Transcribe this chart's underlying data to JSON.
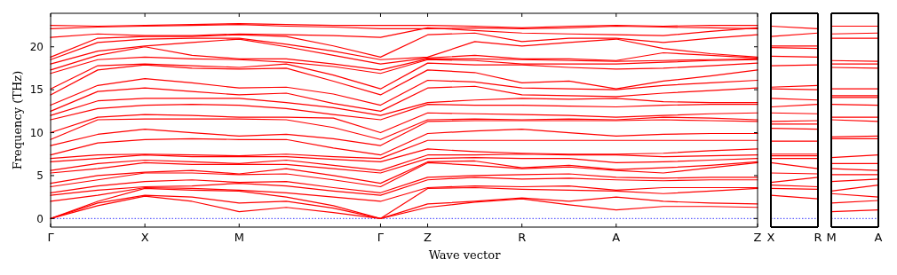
{
  "chart_data": [
    {
      "type": "line",
      "xlabel": "Wave vector",
      "ylabel": "Frequency (THz)",
      "categories": [
        "Γ",
        null,
        "X",
        null,
        "M",
        null,
        null,
        "Γ",
        "Z",
        null,
        "R",
        null,
        "A",
        null,
        null,
        "Z"
      ],
      "ylim": [
        -1,
        23.9
      ],
      "yticks": [
        0,
        5,
        10,
        15,
        20
      ],
      "line_style": "solid",
      "ref_lines": [
        {
          "axis": "y",
          "value": 0,
          "color": "#0000ff",
          "line_style": "dotted"
        }
      ],
      "series": [
        {
          "color": "#ff0000",
          "values": [
            0,
            1.5,
            2.6,
            2.0,
            0.8,
            1.3,
            0.7,
            0,
            1.3,
            1.9,
            2.3,
            1.6,
            1.0,
            1.4,
            1.4,
            1.3
          ]
        },
        {
          "color": "#ff0000",
          "values": [
            0,
            1.8,
            2.7,
            2.5,
            1.8,
            2.0,
            1.2,
            0,
            1.7,
            2.0,
            2.4,
            2.0,
            2.5,
            2.0,
            1.8,
            1.7
          ]
        },
        {
          "color": "#ff0000",
          "values": [
            0,
            2.0,
            3.5,
            3.3,
            3.2,
            2.5,
            1.5,
            0,
            3.5,
            3.6,
            3.4,
            3.3,
            3.2,
            2.9,
            3.2,
            3.5
          ]
        },
        {
          "color": "#ff0000",
          "values": [
            2.0,
            2.7,
            3.6,
            3.5,
            3.3,
            3.0,
            2.5,
            2.0,
            3.6,
            3.8,
            3.7,
            3.8,
            3.3,
            3.6,
            3.6,
            3.6
          ]
        },
        {
          "color": "#ff0000",
          "values": [
            2.7,
            3.3,
            3.7,
            3.8,
            4.1,
            3.8,
            3.2,
            2.7,
            4.5,
            4.8,
            4.6,
            4.7,
            4.5,
            4.4,
            4.5,
            4.5
          ]
        },
        {
          "color": "#ff0000",
          "values": [
            3.0,
            3.8,
            4.3,
            4.5,
            4.2,
            4.3,
            3.6,
            3.0,
            4.8,
            5.0,
            5.1,
            5.2,
            4.8,
            4.7,
            4.8,
            4.8
          ]
        },
        {
          "color": "#ff0000",
          "values": [
            3.7,
            4.5,
            5.3,
            5.3,
            5.1,
            5.2,
            4.5,
            3.7,
            6.5,
            6.2,
            5.8,
            6.0,
            5.6,
            5.3,
            5.9,
            6.5
          ]
        },
        {
          "color": "#ff0000",
          "values": [
            4.1,
            5.0,
            5.4,
            5.6,
            5.2,
            5.8,
            5.0,
            4.1,
            6.6,
            6.7,
            5.9,
            6.2,
            5.7,
            5.9,
            6.2,
            6.6
          ]
        },
        {
          "color": "#ff0000",
          "values": [
            5.3,
            5.8,
            6.5,
            6.3,
            6.3,
            6.3,
            5.8,
            5.3,
            7.0,
            7.1,
            7.0,
            7.0,
            6.5,
            6.6,
            6.8,
            7.0
          ]
        },
        {
          "color": "#ff0000",
          "values": [
            5.6,
            6.4,
            6.8,
            6.6,
            6.4,
            6.8,
            6.2,
            5.6,
            7.4,
            7.4,
            7.5,
            7.4,
            7.4,
            7.2,
            7.3,
            7.4
          ]
        },
        {
          "color": "#ff0000",
          "values": [
            6.6,
            7.0,
            7.4,
            7.2,
            7.2,
            7.2,
            6.9,
            6.6,
            8.1,
            7.8,
            7.6,
            7.5,
            7.5,
            7.6,
            7.9,
            8.1
          ]
        },
        {
          "color": "#ff0000",
          "values": [
            7.0,
            7.4,
            7.5,
            7.4,
            7.3,
            7.5,
            7.2,
            7.0,
            9.1,
            9.1,
            9.1,
            9.1,
            9.1,
            9.1,
            9.1,
            9.1
          ]
        },
        {
          "color": "#ff0000",
          "values": [
            7.4,
            8.8,
            9.2,
            9.3,
            9.2,
            9.2,
            8.2,
            7.4,
            9.9,
            10.2,
            10.4,
            10.0,
            9.6,
            9.8,
            9.9,
            9.9
          ]
        },
        {
          "color": "#ff0000",
          "values": [
            8.5,
            9.8,
            10.4,
            10.0,
            9.6,
            9.8,
            9.3,
            8.5,
            11.3,
            11.4,
            11.4,
            11.4,
            11.4,
            11.5,
            11.4,
            11.3
          ]
        },
        {
          "color": "#ff0000",
          "values": [
            9.2,
            11.5,
            11.6,
            11.6,
            11.6,
            11.5,
            10.6,
            9.2,
            11.5,
            11.6,
            11.5,
            11.6,
            11.5,
            11.8,
            11.7,
            11.5
          ]
        },
        {
          "color": "#ff0000",
          "values": [
            10.0,
            11.8,
            12.1,
            12.0,
            11.8,
            11.8,
            11.7,
            10.0,
            12.3,
            12.2,
            12.1,
            12.0,
            11.8,
            12.0,
            12.2,
            12.3
          ]
        },
        {
          "color": "#ff0000",
          "values": [
            11.5,
            12.8,
            13.2,
            13.3,
            13.2,
            12.8,
            12.1,
            11.5,
            13.3,
            13.2,
            13.2,
            13.1,
            13.0,
            13.2,
            13.3,
            13.3
          ]
        },
        {
          "color": "#ff0000",
          "values": [
            12.0,
            13.7,
            14.0,
            14.0,
            14.0,
            13.5,
            12.9,
            12.0,
            13.5,
            13.8,
            14.0,
            13.9,
            14.0,
            13.6,
            13.5,
            13.5
          ]
        },
        {
          "color": "#ff0000",
          "values": [
            12.5,
            14.8,
            15.2,
            14.8,
            14.4,
            14.6,
            13.4,
            12.5,
            15.2,
            15.4,
            14.4,
            14.3,
            14.2,
            14.6,
            14.9,
            15.2
          ]
        },
        {
          "color": "#ff0000",
          "values": [
            13.2,
            15.5,
            16.3,
            15.8,
            15.2,
            15.3,
            14.5,
            13.2,
            16.1,
            15.9,
            15.2,
            15.1,
            15.0,
            15.5,
            15.8,
            16.1
          ]
        },
        {
          "color": "#ff0000",
          "values": [
            14.4,
            17.3,
            17.9,
            17.5,
            17.4,
            17.5,
            16.0,
            14.4,
            17.3,
            17.0,
            15.8,
            16.0,
            15.1,
            16.0,
            16.6,
            17.3
          ]
        },
        {
          "color": "#ff0000",
          "values": [
            15.1,
            17.8,
            18.0,
            17.8,
            17.6,
            18.0,
            16.7,
            15.1,
            18.1,
            17.9,
            17.9,
            17.6,
            17.4,
            17.5,
            17.8,
            18.1
          ]
        },
        {
          "color": "#ff0000",
          "values": [
            16.9,
            18.5,
            18.8,
            18.6,
            18.5,
            18.2,
            17.7,
            16.9,
            18.5,
            18.4,
            18.0,
            18.0,
            18.0,
            18.2,
            18.4,
            18.5
          ]
        },
        {
          "color": "#ff0000",
          "values": [
            17.3,
            19.0,
            20.0,
            19.0,
            18.6,
            18.6,
            18.0,
            17.3,
            18.6,
            18.6,
            18.5,
            18.4,
            18.3,
            18.4,
            18.5,
            18.6
          ]
        },
        {
          "color": "#ff0000",
          "values": [
            18.0,
            19.5,
            20.1,
            20.5,
            20.9,
            20.0,
            19.0,
            18.0,
            18.7,
            19.0,
            18.6,
            18.6,
            18.4,
            19.3,
            19.0,
            18.7
          ]
        },
        {
          "color": "#ff0000",
          "values": [
            18.5,
            20.5,
            20.9,
            21.0,
            21.0,
            20.3,
            19.5,
            18.5,
            18.8,
            20.6,
            20.1,
            20.5,
            20.9,
            19.8,
            19.2,
            18.8
          ]
        },
        {
          "color": "#ff0000",
          "values": [
            18.8,
            21.0,
            21.2,
            21.2,
            21.4,
            21.2,
            20.1,
            18.8,
            21.4,
            21.6,
            20.6,
            21.0,
            21.0,
            20.5,
            21.0,
            21.4
          ]
        },
        {
          "color": "#ff0000",
          "values": [
            21.1,
            21.5,
            21.3,
            21.3,
            21.5,
            21.4,
            21.3,
            21.1,
            22.2,
            21.9,
            21.6,
            21.5,
            21.4,
            21.3,
            21.8,
            22.2
          ]
        },
        {
          "color": "#ff0000",
          "values": [
            22.1,
            22.3,
            22.4,
            22.5,
            22.6,
            22.4,
            22.3,
            22.1,
            22.1,
            22.2,
            22.1,
            22.2,
            22.4,
            22.3,
            22.2,
            22.1
          ]
        },
        {
          "color": "#ff0000",
          "values": [
            22.5,
            22.4,
            22.5,
            22.6,
            22.7,
            22.6,
            22.5,
            22.5,
            22.5,
            22.4,
            22.2,
            22.4,
            22.5,
            22.4,
            22.5,
            22.5
          ]
        }
      ]
    },
    {
      "type": "line",
      "categories": [
        "X",
        "R"
      ],
      "ylim": [
        -1,
        23.9
      ],
      "tick_labels": "x",
      "line_style": "solid",
      "ref_lines": [
        {
          "axis": "y",
          "value": 0,
          "color": "#0000ff",
          "line_style": "dotted"
        }
      ],
      "series": [
        {
          "color": "#ff0000",
          "values": [
            2.7,
            2.3
          ]
        },
        {
          "color": "#ff0000",
          "values": [
            3.5,
            3.4
          ]
        },
        {
          "color": "#ff0000",
          "values": [
            3.9,
            3.7
          ]
        },
        {
          "color": "#ff0000",
          "values": [
            4.2,
            4.8
          ]
        },
        {
          "color": "#ff0000",
          "values": [
            5.3,
            5.2
          ]
        },
        {
          "color": "#ff0000",
          "values": [
            6.5,
            5.8
          ]
        },
        {
          "color": "#ff0000",
          "values": [
            7.0,
            7.0
          ]
        },
        {
          "color": "#ff0000",
          "values": [
            7.3,
            7.3
          ]
        },
        {
          "color": "#ff0000",
          "values": [
            7.5,
            7.5
          ]
        },
        {
          "color": "#ff0000",
          "values": [
            9.0,
            9.0
          ]
        },
        {
          "color": "#ff0000",
          "values": [
            10.5,
            10.4
          ]
        },
        {
          "color": "#ff0000",
          "values": [
            11.0,
            11.0
          ]
        },
        {
          "color": "#ff0000",
          "values": [
            11.3,
            11.4
          ]
        },
        {
          "color": "#ff0000",
          "values": [
            12.3,
            12.2
          ]
        },
        {
          "color": "#ff0000",
          "values": [
            13.0,
            13.3
          ]
        },
        {
          "color": "#ff0000",
          "values": [
            14.0,
            13.8
          ]
        },
        {
          "color": "#ff0000",
          "values": [
            15.1,
            15.0
          ]
        },
        {
          "color": "#ff0000",
          "values": [
            15.3,
            15.5
          ]
        },
        {
          "color": "#ff0000",
          "values": [
            17.8,
            17.9
          ]
        },
        {
          "color": "#ff0000",
          "values": [
            18.9,
            18.8
          ]
        },
        {
          "color": "#ff0000",
          "values": [
            19.9,
            19.8
          ]
        },
        {
          "color": "#ff0000",
          "values": [
            20.1,
            20.1
          ]
        },
        {
          "color": "#ff0000",
          "values": [
            21.2,
            21.6
          ]
        },
        {
          "color": "#ff0000",
          "values": [
            22.4,
            22.1
          ]
        }
      ]
    },
    {
      "type": "line",
      "categories": [
        "M",
        "A"
      ],
      "ylim": [
        -1,
        23.9
      ],
      "tick_labels": "x",
      "line_style": "solid",
      "ref_lines": [
        {
          "axis": "y",
          "value": 0,
          "color": "#0000ff",
          "line_style": "dotted"
        }
      ],
      "series": [
        {
          "color": "#ff0000",
          "values": [
            0.8,
            1.0
          ]
        },
        {
          "color": "#ff0000",
          "values": [
            1.8,
            2.1
          ]
        },
        {
          "color": "#ff0000",
          "values": [
            2.9,
            2.5
          ]
        },
        {
          "color": "#ff0000",
          "values": [
            3.2,
            3.9
          ]
        },
        {
          "color": "#ff0000",
          "values": [
            4.3,
            4.6
          ]
        },
        {
          "color": "#ff0000",
          "values": [
            5.1,
            5.1
          ]
        },
        {
          "color": "#ff0000",
          "values": [
            5.8,
            5.6
          ]
        },
        {
          "color": "#ff0000",
          "values": [
            6.4,
            6.4
          ]
        },
        {
          "color": "#ff0000",
          "values": [
            7.1,
            7.4
          ]
        },
        {
          "color": "#ff0000",
          "values": [
            9.3,
            9.3
          ]
        },
        {
          "color": "#ff0000",
          "values": [
            9.5,
            9.6
          ]
        },
        {
          "color": "#ff0000",
          "values": [
            11.5,
            11.3
          ]
        },
        {
          "color": "#ff0000",
          "values": [
            11.8,
            11.8
          ]
        },
        {
          "color": "#ff0000",
          "values": [
            13.3,
            13.2
          ]
        },
        {
          "color": "#ff0000",
          "values": [
            14.1,
            14.1
          ]
        },
        {
          "color": "#ff0000",
          "values": [
            14.3,
            14.3
          ]
        },
        {
          "color": "#ff0000",
          "values": [
            15.1,
            15.1
          ]
        },
        {
          "color": "#ff0000",
          "values": [
            17.6,
            17.5
          ]
        },
        {
          "color": "#ff0000",
          "values": [
            18.0,
            18.0
          ]
        },
        {
          "color": "#ff0000",
          "values": [
            18.4,
            18.3
          ]
        },
        {
          "color": "#ff0000",
          "values": [
            21.0,
            21.0
          ]
        },
        {
          "color": "#ff0000",
          "values": [
            21.5,
            21.6
          ]
        },
        {
          "color": "#ff0000",
          "values": [
            22.4,
            22.4
          ]
        }
      ]
    }
  ]
}
